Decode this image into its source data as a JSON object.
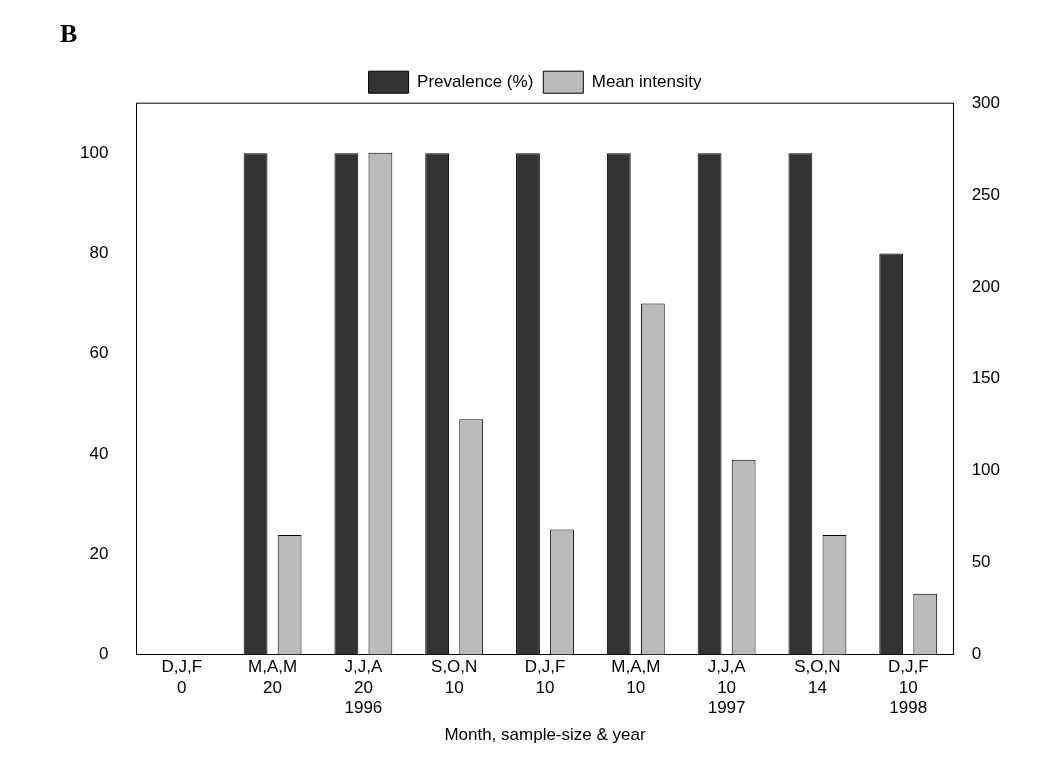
{
  "chart_data": {
    "type": "bar",
    "title": "B",
    "xlabel": "Month, sample-size & year",
    "categories": [
      "D,J,F\n0",
      "M,A,M\n20",
      "J,J,A\n20\n1996",
      "S,O,N\n10",
      "D,J,F\n10",
      "M,A,M\n10",
      "J,J,A\n10\n1997",
      "S,O,N\n14",
      "D,J,F\n10\n1998"
    ],
    "series": [
      {
        "name": "Prevalence (%)",
        "color": "#333333",
        "values": [
          0,
          100,
          100,
          100,
          100,
          100,
          100,
          100,
          80
        ]
      },
      {
        "name": "Mean intensity",
        "color": "#bbbbbb",
        "axis": "y2",
        "values": [
          0,
          65,
          273,
          128,
          68,
          191,
          106,
          65,
          33
        ]
      }
    ],
    "ylim": [
      0,
      110
    ],
    "yticks": [
      0,
      20,
      40,
      60,
      80,
      100
    ],
    "y2lim": [
      0,
      300
    ],
    "y2ticks": [
      0,
      50,
      100,
      150,
      200,
      250,
      300
    ],
    "grid": false,
    "legend": "top"
  }
}
